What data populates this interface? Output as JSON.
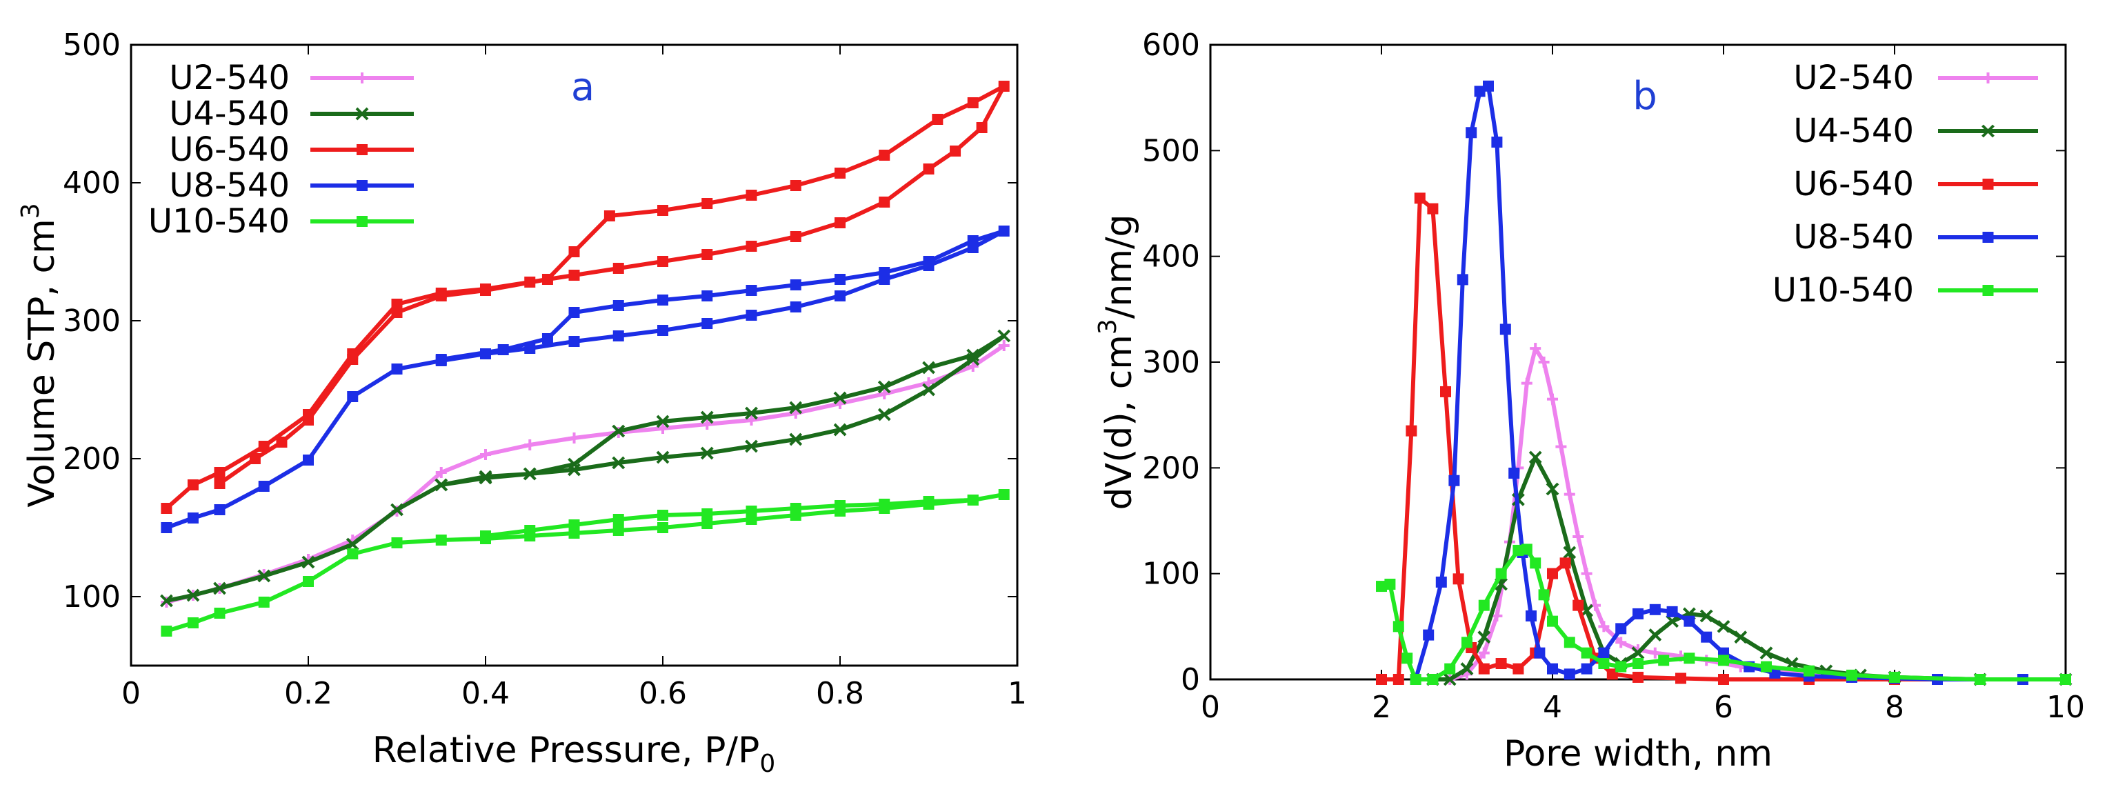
{
  "chart_data": [
    {
      "type": "line",
      "panel_letter": "a",
      "xlabel_main": "Relative Pressure, P/P",
      "xlabel_sub": "0",
      "ylabel_main": "Volume STP, cm",
      "ylabel_sup": "3",
      "xlim": [
        0,
        1
      ],
      "ylim": [
        50,
        500
      ],
      "xticks": [
        0,
        0.2,
        0.4,
        0.6,
        0.8,
        1
      ],
      "xtick_labels": [
        "0",
        "0.2",
        "0.4",
        "0.6",
        "0.8",
        "1"
      ],
      "yticks": [
        100,
        200,
        300,
        400,
        500
      ],
      "ytick_labels": [
        "100",
        "200",
        "300",
        "400",
        "500"
      ],
      "legend_position": "top-left",
      "series": [
        {
          "name": "U2-540",
          "color": "#ee82ee",
          "marker": "plus",
          "x": [
            0.04,
            0.07,
            0.1,
            0.15,
            0.2,
            0.25,
            0.3,
            0.35,
            0.4,
            0.45,
            0.5,
            0.55,
            0.6,
            0.65,
            0.7,
            0.75,
            0.8,
            0.85,
            0.9,
            0.95,
            0.985
          ],
          "y": [
            96,
            101,
            106,
            116,
            127,
            141,
            162,
            190,
            203,
            210,
            215,
            219,
            222,
            225,
            228,
            233,
            240,
            247,
            255,
            267,
            282
          ]
        },
        {
          "name": "U4-540",
          "color": "#1a6b1a",
          "marker": "x",
          "x": [
            0.04,
            0.07,
            0.1,
            0.15,
            0.2,
            0.25,
            0.3,
            0.35,
            0.4,
            0.45,
            0.5,
            0.55,
            0.6,
            0.65,
            0.7,
            0.75,
            0.8,
            0.85,
            0.9,
            0.95,
            0.985,
            0.95,
            0.9,
            0.85,
            0.8,
            0.75,
            0.7,
            0.65,
            0.6,
            0.55,
            0.5,
            0.45,
            0.4,
            0.35
          ],
          "y": [
            97,
            101,
            106,
            115,
            125,
            138,
            163,
            181,
            186,
            189,
            192,
            197,
            201,
            204,
            209,
            214,
            221,
            232,
            250,
            272,
            289,
            275,
            266,
            252,
            244,
            237,
            233,
            230,
            227,
            220,
            196,
            189,
            187,
            181
          ]
        },
        {
          "name": "U6-540",
          "color": "#ee1c1c",
          "marker": "box",
          "x": [
            0.04,
            0.07,
            0.1,
            0.15,
            0.2,
            0.25,
            0.3,
            0.35,
            0.4,
            0.45,
            0.5,
            0.55,
            0.6,
            0.65,
            0.7,
            0.75,
            0.8,
            0.85,
            0.9,
            0.93,
            0.96,
            0.985,
            0.95,
            0.91,
            0.85,
            0.8,
            0.75,
            0.7,
            0.65,
            0.6,
            0.54,
            0.5,
            0.47,
            0.4,
            0.35,
            0.3,
            0.25,
            0.2,
            0.17,
            0.14,
            0.1
          ],
          "y": [
            164,
            181,
            190,
            209,
            232,
            276,
            312,
            320,
            323,
            328,
            333,
            338,
            343,
            348,
            354,
            361,
            371,
            386,
            410,
            423,
            440,
            470,
            458,
            446,
            420,
            407,
            398,
            391,
            385,
            380,
            376,
            350,
            330,
            322,
            318,
            306,
            272,
            228,
            212,
            200,
            182
          ]
        },
        {
          "name": "U8-540",
          "color": "#1c2ee6",
          "marker": "box",
          "x": [
            0.04,
            0.07,
            0.1,
            0.15,
            0.2,
            0.25,
            0.3,
            0.35,
            0.4,
            0.45,
            0.5,
            0.55,
            0.6,
            0.65,
            0.7,
            0.75,
            0.8,
            0.85,
            0.9,
            0.95,
            0.985,
            0.95,
            0.9,
            0.85,
            0.8,
            0.75,
            0.7,
            0.65,
            0.6,
            0.55,
            0.5,
            0.47,
            0.42,
            0.35
          ],
          "y": [
            150,
            157,
            163,
            180,
            199,
            245,
            265,
            271,
            276,
            280,
            285,
            289,
            293,
            298,
            304,
            310,
            318,
            330,
            340,
            353,
            365,
            358,
            343,
            335,
            330,
            326,
            322,
            318,
            315,
            311,
            306,
            287,
            279,
            272
          ]
        },
        {
          "name": "U10-540",
          "color": "#22e822",
          "marker": "box",
          "x": [
            0.04,
            0.07,
            0.1,
            0.15,
            0.2,
            0.25,
            0.3,
            0.35,
            0.4,
            0.45,
            0.5,
            0.55,
            0.6,
            0.65,
            0.7,
            0.75,
            0.8,
            0.85,
            0.9,
            0.95,
            0.985,
            0.95,
            0.9,
            0.85,
            0.8,
            0.75,
            0.7,
            0.65,
            0.6,
            0.55,
            0.5,
            0.45,
            0.4
          ],
          "y": [
            75,
            81,
            88,
            96,
            111,
            131,
            139,
            141,
            142,
            144,
            146,
            148,
            150,
            153,
            156,
            159,
            162,
            164,
            167,
            170,
            174,
            170,
            169,
            167,
            166,
            164,
            162,
            160,
            159,
            156,
            152,
            148,
            144
          ]
        }
      ]
    },
    {
      "type": "line",
      "panel_letter": "b",
      "xlabel": "Pore width, nm",
      "ylabel_main": "dV(d), cm",
      "ylabel_sup": "3",
      "ylabel_rest": "/nm/g",
      "xlim": [
        0,
        10
      ],
      "ylim": [
        0,
        600
      ],
      "xticks": [
        0,
        2,
        4,
        6,
        8,
        10
      ],
      "xtick_labels": [
        "0",
        "2",
        "4",
        "6",
        "8",
        "10"
      ],
      "yticks": [
        0,
        100,
        200,
        300,
        400,
        500,
        600
      ],
      "ytick_labels": [
        "0",
        "100",
        "200",
        "300",
        "400",
        "500",
        "600"
      ],
      "legend_position": "top-right",
      "series": [
        {
          "name": "U2-540",
          "color": "#ee82ee",
          "marker": "plus",
          "x": [
            2.8,
            3.0,
            3.2,
            3.35,
            3.5,
            3.6,
            3.7,
            3.8,
            3.9,
            4.0,
            4.1,
            4.2,
            4.3,
            4.4,
            4.5,
            4.6,
            4.8,
            5.0,
            5.2,
            5.5,
            5.8,
            6.2,
            6.6,
            7.0,
            7.5,
            8.0,
            9.0,
            10.0
          ],
          "y": [
            0,
            5,
            25,
            60,
            130,
            200,
            280,
            313,
            300,
            265,
            220,
            175,
            135,
            100,
            70,
            50,
            35,
            28,
            25,
            22,
            18,
            12,
            8,
            4,
            2,
            1,
            0,
            0
          ]
        },
        {
          "name": "U4-540",
          "color": "#1a6b1a",
          "marker": "x",
          "x": [
            2.6,
            2.8,
            3.0,
            3.2,
            3.4,
            3.6,
            3.8,
            4.0,
            4.2,
            4.4,
            4.6,
            4.8,
            5.0,
            5.2,
            5.4,
            5.6,
            5.8,
            6.0,
            6.2,
            6.5,
            6.8,
            7.2,
            7.6,
            8.0,
            9.0,
            10.0
          ],
          "y": [
            0,
            0,
            10,
            40,
            90,
            170,
            210,
            180,
            120,
            65,
            25,
            15,
            25,
            42,
            55,
            62,
            60,
            50,
            40,
            25,
            15,
            8,
            4,
            2,
            0,
            0
          ]
        },
        {
          "name": "U6-540",
          "color": "#ee1c1c",
          "marker": "box",
          "x": [
            2.0,
            2.2,
            2.35,
            2.45,
            2.6,
            2.75,
            2.9,
            3.05,
            3.2,
            3.4,
            3.6,
            3.8,
            4.0,
            4.15,
            4.3,
            4.5,
            4.7,
            5.0,
            5.5,
            6.0,
            7.0,
            8.0,
            9.0,
            10.0
          ],
          "y": [
            0,
            0,
            235,
            455,
            445,
            272,
            95,
            30,
            10,
            15,
            10,
            25,
            100,
            110,
            70,
            20,
            5,
            2,
            1,
            0,
            0,
            0,
            0,
            0
          ]
        },
        {
          "name": "U8-540",
          "color": "#1c2ee6",
          "marker": "box",
          "x": [
            2.4,
            2.55,
            2.7,
            2.85,
            2.95,
            3.05,
            3.15,
            3.25,
            3.35,
            3.45,
            3.55,
            3.65,
            3.75,
            3.85,
            4.0,
            4.2,
            4.4,
            4.6,
            4.8,
            5.0,
            5.2,
            5.4,
            5.6,
            5.8,
            6.0,
            6.3,
            6.6,
            7.0,
            7.5,
            8.0,
            8.5,
            9.0,
            9.5,
            10.0
          ],
          "y": [
            0,
            42,
            92,
            188,
            378,
            517,
            556,
            561,
            508,
            331,
            195,
            120,
            60,
            25,
            10,
            5,
            10,
            25,
            48,
            62,
            66,
            64,
            55,
            40,
            25,
            12,
            6,
            3,
            2,
            1,
            0,
            0,
            0,
            0
          ]
        },
        {
          "name": "U10-540",
          "color": "#22e822",
          "marker": "box",
          "x": [
            2.0,
            2.1,
            2.2,
            2.3,
            2.4,
            2.6,
            2.8,
            3.0,
            3.2,
            3.4,
            3.6,
            3.7,
            3.8,
            3.9,
            4.0,
            4.2,
            4.4,
            4.6,
            4.8,
            5.0,
            5.3,
            5.6,
            6.0,
            6.5,
            7.0,
            7.5,
            8.0,
            9.0,
            10.0
          ],
          "y": [
            88,
            90,
            50,
            20,
            0,
            0,
            10,
            35,
            70,
            100,
            122,
            123,
            110,
            80,
            55,
            35,
            25,
            15,
            12,
            15,
            18,
            20,
            18,
            12,
            8,
            4,
            2,
            0,
            0
          ]
        }
      ]
    }
  ]
}
